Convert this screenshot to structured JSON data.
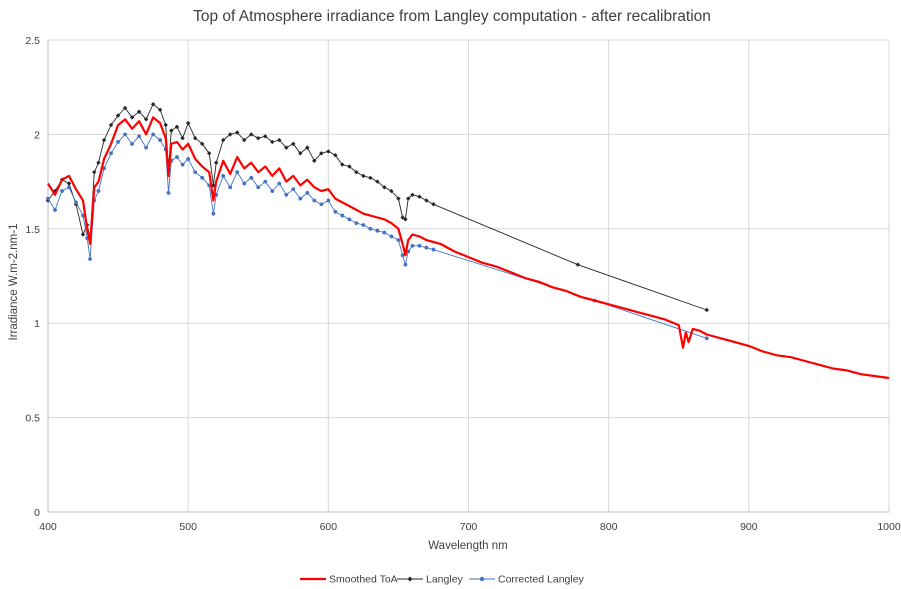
{
  "chart_data": {
    "type": "line",
    "title": "Top of Atmosphere irradiance from Langley computation - after recalibration",
    "xlabel": "Wavelength nm",
    "ylabel": "Irradiance W.m-2.nm-1",
    "xlim": [
      400,
      1000
    ],
    "ylim": [
      0,
      2.5
    ],
    "xticks": [
      "400",
      "500",
      "600",
      "700",
      "800",
      "900",
      "1000"
    ],
    "yticks": [
      "0",
      "0.5",
      "1",
      "1.5",
      "2",
      "2.5"
    ],
    "grid": "vertical",
    "legend": "bottom",
    "series": [
      {
        "name": "Smoothed ToA",
        "color": "#ff0000",
        "marker": "none",
        "x": [
          400,
          405,
          410,
          415,
          420,
          425,
          428,
          430,
          433,
          436,
          440,
          445,
          450,
          455,
          460,
          465,
          470,
          475,
          480,
          484,
          486,
          488,
          492,
          496,
          500,
          505,
          510,
          515,
          518,
          520,
          525,
          530,
          535,
          540,
          545,
          550,
          555,
          560,
          565,
          570,
          575,
          580,
          585,
          590,
          595,
          600,
          605,
          610,
          615,
          620,
          625,
          630,
          635,
          640,
          645,
          650,
          653,
          655,
          657,
          660,
          665,
          670,
          675,
          680,
          690,
          700,
          710,
          720,
          730,
          740,
          750,
          760,
          770,
          780,
          790,
          800,
          810,
          820,
          830,
          840,
          850,
          853,
          855,
          857,
          860,
          865,
          870,
          880,
          890,
          900,
          910,
          920,
          930,
          940,
          950,
          960,
          970,
          980,
          990,
          1000
        ],
        "y": [
          1.74,
          1.68,
          1.76,
          1.78,
          1.71,
          1.65,
          1.5,
          1.42,
          1.72,
          1.75,
          1.87,
          1.95,
          2.05,
          2.08,
          2.03,
          2.07,
          2.0,
          2.09,
          2.06,
          1.98,
          1.78,
          1.95,
          1.96,
          1.92,
          1.95,
          1.87,
          1.83,
          1.8,
          1.65,
          1.75,
          1.86,
          1.79,
          1.88,
          1.82,
          1.85,
          1.8,
          1.83,
          1.78,
          1.82,
          1.75,
          1.78,
          1.73,
          1.76,
          1.72,
          1.7,
          1.71,
          1.66,
          1.64,
          1.62,
          1.6,
          1.58,
          1.57,
          1.56,
          1.55,
          1.53,
          1.5,
          1.42,
          1.36,
          1.44,
          1.47,
          1.46,
          1.44,
          1.43,
          1.42,
          1.38,
          1.35,
          1.32,
          1.3,
          1.27,
          1.24,
          1.22,
          1.19,
          1.17,
          1.14,
          1.12,
          1.1,
          1.08,
          1.06,
          1.04,
          1.02,
          0.99,
          0.87,
          0.95,
          0.9,
          0.97,
          0.96,
          0.94,
          0.92,
          0.9,
          0.88,
          0.85,
          0.83,
          0.82,
          0.8,
          0.78,
          0.76,
          0.75,
          0.73,
          0.72,
          0.71
        ]
      },
      {
        "name": "Langley",
        "color": "#262626",
        "marker": "diamond",
        "x": [
          400,
          405,
          410,
          415,
          420,
          425,
          428,
          430,
          433,
          436,
          440,
          445,
          450,
          455,
          460,
          465,
          470,
          475,
          480,
          484,
          486,
          488,
          492,
          496,
          500,
          505,
          510,
          515,
          518,
          520,
          525,
          530,
          535,
          540,
          545,
          550,
          555,
          560,
          565,
          570,
          575,
          580,
          585,
          590,
          595,
          600,
          605,
          610,
          615,
          620,
          625,
          630,
          635,
          640,
          645,
          650,
          653,
          655,
          657,
          660,
          665,
          670,
          675,
          778,
          870
        ],
        "y": [
          1.65,
          1.7,
          1.76,
          1.74,
          1.63,
          1.47,
          1.52,
          1.45,
          1.8,
          1.85,
          1.97,
          2.05,
          2.1,
          2.14,
          2.09,
          2.12,
          2.08,
          2.16,
          2.13,
          2.05,
          1.82,
          2.02,
          2.04,
          1.98,
          2.06,
          1.98,
          1.95,
          1.9,
          1.73,
          1.85,
          1.97,
          2.0,
          2.01,
          1.97,
          2.0,
          1.98,
          1.99,
          1.96,
          1.97,
          1.93,
          1.95,
          1.9,
          1.93,
          1.86,
          1.9,
          1.91,
          1.89,
          1.84,
          1.83,
          1.8,
          1.78,
          1.77,
          1.75,
          1.72,
          1.7,
          1.66,
          1.56,
          1.55,
          1.66,
          1.68,
          1.67,
          1.65,
          1.63,
          1.31,
          1.07
        ]
      },
      {
        "name": "Corrected Langley",
        "color": "#4472c4",
        "marker": "circle",
        "x": [
          400,
          405,
          410,
          415,
          420,
          425,
          428,
          430,
          433,
          436,
          440,
          445,
          450,
          455,
          460,
          465,
          470,
          475,
          480,
          484,
          486,
          488,
          492,
          496,
          500,
          505,
          510,
          515,
          518,
          520,
          525,
          530,
          535,
          540,
          545,
          550,
          555,
          560,
          565,
          570,
          575,
          580,
          585,
          590,
          595,
          600,
          605,
          610,
          615,
          620,
          625,
          630,
          635,
          640,
          645,
          650,
          653,
          655,
          657,
          660,
          665,
          670,
          675,
          790,
          870
        ],
        "y": [
          1.66,
          1.6,
          1.7,
          1.72,
          1.64,
          1.57,
          1.45,
          1.34,
          1.65,
          1.7,
          1.82,
          1.9,
          1.96,
          2.0,
          1.95,
          1.99,
          1.93,
          2.0,
          1.97,
          1.92,
          1.69,
          1.86,
          1.88,
          1.84,
          1.87,
          1.8,
          1.77,
          1.73,
          1.58,
          1.68,
          1.78,
          1.72,
          1.8,
          1.74,
          1.77,
          1.72,
          1.75,
          1.7,
          1.74,
          1.68,
          1.71,
          1.66,
          1.69,
          1.65,
          1.63,
          1.65,
          1.59,
          1.57,
          1.55,
          1.53,
          1.52,
          1.5,
          1.49,
          1.48,
          1.46,
          1.44,
          1.36,
          1.31,
          1.38,
          1.41,
          1.41,
          1.4,
          1.39,
          1.12,
          0.92
        ]
      }
    ]
  }
}
